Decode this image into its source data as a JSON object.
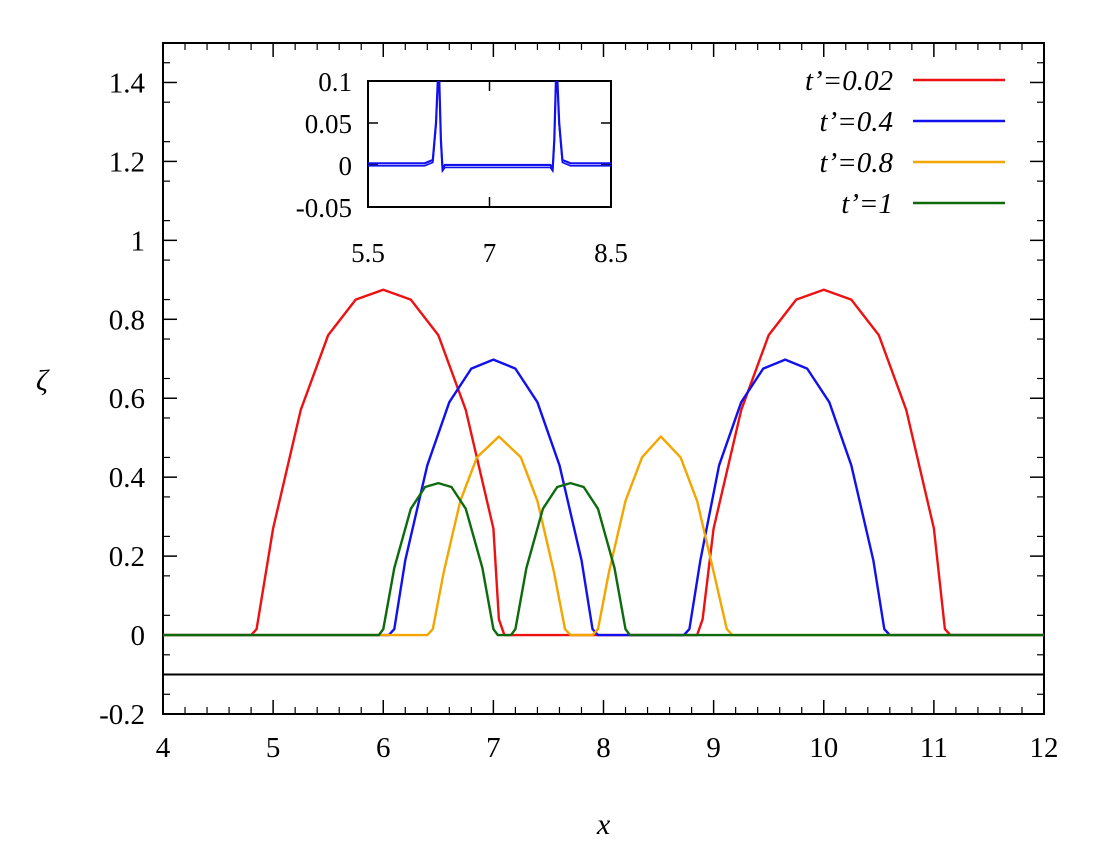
{
  "chart_data": {
    "type": "line",
    "xlabel": "x",
    "ylabel": "ζ",
    "xlim": [
      4,
      12
    ],
    "ylim": [
      -0.2,
      1.5
    ],
    "xticks": [
      4,
      5,
      6,
      7,
      8,
      9,
      10,
      11,
      12
    ],
    "yticks": [
      -0.2,
      0,
      0.2,
      0.4,
      0.6,
      0.8,
      1,
      1.2,
      1.4
    ],
    "ytick_labels": [
      "-0.2",
      "0",
      "0.2",
      "0.4",
      "0.6",
      "0.8",
      "1",
      "1.2",
      "1.4"
    ],
    "grid": false,
    "legend_position": "top-right",
    "reference_line": {
      "y": -0.1,
      "color": "#000000"
    },
    "series": [
      {
        "name": "t’=0.02",
        "color": "#ee1111",
        "points": [
          [
            4,
            0
          ],
          [
            4.8,
            0
          ],
          [
            4.85,
            0.015
          ],
          [
            5.0,
            0.27
          ],
          [
            5.25,
            0.57
          ],
          [
            5.5,
            0.76
          ],
          [
            5.75,
            0.85
          ],
          [
            6.0,
            0.875
          ],
          [
            6.25,
            0.85
          ],
          [
            6.5,
            0.76
          ],
          [
            6.75,
            0.57
          ],
          [
            7.0,
            0.27
          ],
          [
            7.05,
            0.04
          ],
          [
            7.1,
            0
          ],
          [
            8.85,
            0
          ],
          [
            8.9,
            0.04
          ],
          [
            9.0,
            0.27
          ],
          [
            9.25,
            0.57
          ],
          [
            9.5,
            0.76
          ],
          [
            9.75,
            0.85
          ],
          [
            10.0,
            0.875
          ],
          [
            10.25,
            0.85
          ],
          [
            10.5,
            0.76
          ],
          [
            10.75,
            0.57
          ],
          [
            11.0,
            0.27
          ],
          [
            11.1,
            0.015
          ],
          [
            11.15,
            0
          ],
          [
            12,
            0
          ]
        ]
      },
      {
        "name": "t’=0.4",
        "color": "#1111ee",
        "points": [
          [
            4,
            0
          ],
          [
            6.05,
            0
          ],
          [
            6.1,
            0.015
          ],
          [
            6.2,
            0.19
          ],
          [
            6.4,
            0.43
          ],
          [
            6.6,
            0.59
          ],
          [
            6.8,
            0.675
          ],
          [
            7.0,
            0.698
          ],
          [
            7.2,
            0.675
          ],
          [
            7.4,
            0.59
          ],
          [
            7.6,
            0.43
          ],
          [
            7.8,
            0.19
          ],
          [
            7.9,
            0.015
          ],
          [
            7.95,
            0
          ],
          [
            8.73,
            0
          ],
          [
            8.78,
            0.015
          ],
          [
            8.88,
            0.19
          ],
          [
            9.05,
            0.43
          ],
          [
            9.25,
            0.59
          ],
          [
            9.45,
            0.675
          ],
          [
            9.65,
            0.698
          ],
          [
            9.85,
            0.675
          ],
          [
            10.05,
            0.59
          ],
          [
            10.25,
            0.43
          ],
          [
            10.45,
            0.19
          ],
          [
            10.55,
            0.015
          ],
          [
            10.6,
            0
          ],
          [
            12,
            0
          ]
        ]
      },
      {
        "name": "t’=0.8",
        "color": "#f5a500",
        "points": [
          [
            4,
            0
          ],
          [
            6.4,
            0
          ],
          [
            6.45,
            0.015
          ],
          [
            6.55,
            0.16
          ],
          [
            6.7,
            0.34
          ],
          [
            6.85,
            0.45
          ],
          [
            7.05,
            0.503
          ],
          [
            7.25,
            0.45
          ],
          [
            7.4,
            0.34
          ],
          [
            7.55,
            0.16
          ],
          [
            7.65,
            0.015
          ],
          [
            7.7,
            0
          ],
          [
            7.9,
            0
          ],
          [
            7.95,
            0.015
          ],
          [
            8.05,
            0.16
          ],
          [
            8.2,
            0.34
          ],
          [
            8.35,
            0.45
          ],
          [
            8.52,
            0.503
          ],
          [
            8.7,
            0.45
          ],
          [
            8.85,
            0.34
          ],
          [
            9.0,
            0.16
          ],
          [
            9.12,
            0.015
          ],
          [
            9.17,
            0
          ],
          [
            12,
            0
          ]
        ]
      },
      {
        "name": "t’=1",
        "color": "#0d6b0d",
        "points": [
          [
            4,
            0
          ],
          [
            5.96,
            0
          ],
          [
            6.0,
            0.015
          ],
          [
            6.1,
            0.17
          ],
          [
            6.25,
            0.32
          ],
          [
            6.38,
            0.375
          ],
          [
            6.5,
            0.385
          ],
          [
            6.62,
            0.375
          ],
          [
            6.75,
            0.32
          ],
          [
            6.9,
            0.17
          ],
          [
            7.0,
            0.015
          ],
          [
            7.04,
            0
          ],
          [
            7.16,
            0
          ],
          [
            7.2,
            0.015
          ],
          [
            7.3,
            0.17
          ],
          [
            7.45,
            0.32
          ],
          [
            7.58,
            0.375
          ],
          [
            7.7,
            0.385
          ],
          [
            7.82,
            0.375
          ],
          [
            7.95,
            0.32
          ],
          [
            8.1,
            0.17
          ],
          [
            8.2,
            0.015
          ],
          [
            8.24,
            0
          ],
          [
            12,
            0
          ]
        ]
      }
    ],
    "inset": {
      "xlim": [
        5.5,
        8.5
      ],
      "ylim": [
        -0.05,
        0.1
      ],
      "xticks": [
        5.5,
        7,
        8.5
      ],
      "xtick_labels": [
        "5.5",
        "7",
        "8.5"
      ],
      "yticks": [
        -0.05,
        0,
        0.05,
        0.1
      ],
      "ytick_labels": [
        "-0.05",
        "0",
        "0.05",
        "0.1"
      ],
      "series_color": "#1111ee",
      "points": [
        [
          5.5,
          0.002
        ],
        [
          6.2,
          0.002
        ],
        [
          6.3,
          0.006
        ],
        [
          6.34,
          0.05
        ],
        [
          6.37,
          0.12
        ],
        [
          6.38,
          0.1
        ],
        [
          6.4,
          0.03
        ],
        [
          6.42,
          -0.004
        ],
        [
          6.45,
          0
        ],
        [
          7.75,
          0
        ],
        [
          7.78,
          -0.004
        ],
        [
          7.8,
          0.03
        ],
        [
          7.82,
          0.1
        ],
        [
          7.83,
          0.12
        ],
        [
          7.86,
          0.05
        ],
        [
          7.9,
          0.006
        ],
        [
          8.0,
          0.002
        ],
        [
          8.5,
          0.002
        ]
      ]
    }
  }
}
